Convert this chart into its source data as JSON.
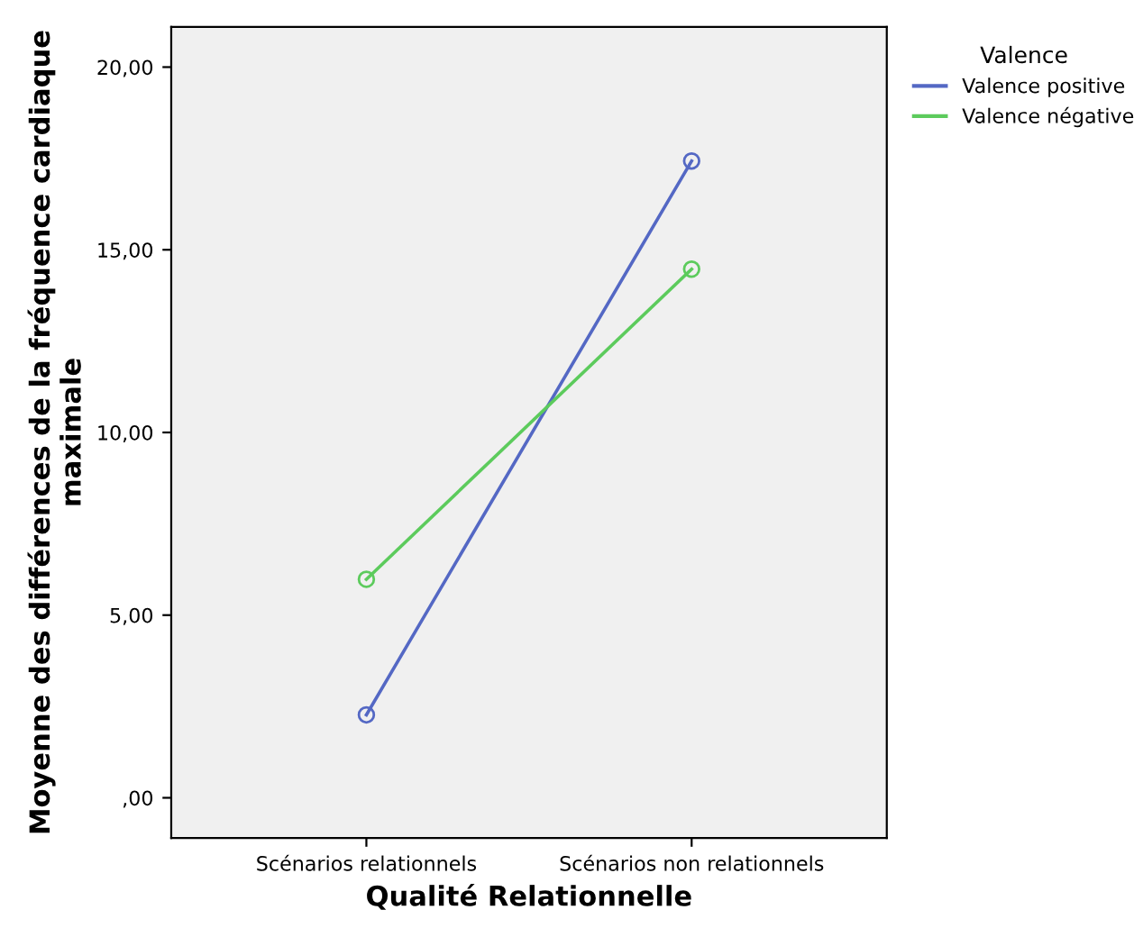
{
  "chart_data": {
    "type": "line",
    "xlabel": "Qualité Relationnelle",
    "ylabel": "Moyenne des différences de la fréquence cardiaque maximale",
    "legend_title": "Valence",
    "categories": [
      "Scénarios relationnels",
      "Scénarios non relationnels"
    ],
    "series": [
      {
        "name": "Valence positive",
        "color": "#5468c4",
        "values": [
          2.27,
          17.43
        ]
      },
      {
        "name": "Valence négative",
        "color": "#5ccb5c",
        "values": [
          5.98,
          14.47
        ]
      }
    ],
    "ylim": [
      -1.1,
      21.1
    ],
    "yticks": [
      {
        "value": 0,
        "label": ",00"
      },
      {
        "value": 5,
        "label": "5,00"
      },
      {
        "value": 10,
        "label": "10,00"
      },
      {
        "value": 15,
        "label": "15,00"
      },
      {
        "value": 20,
        "label": "20,00"
      }
    ],
    "grid": false,
    "legend": "top right",
    "marker": "circle",
    "line_style": "solid"
  }
}
